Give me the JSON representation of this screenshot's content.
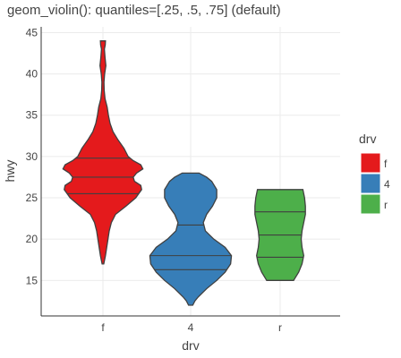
{
  "chart_data": {
    "type": "violin",
    "title": "geom_violin(): quantiles=[.25, .5, .75] (default)",
    "xlabel": "drv",
    "ylabel": "hwy",
    "ylim": [
      10.7,
      45.7
    ],
    "yticks": [
      15,
      20,
      25,
      30,
      35,
      40,
      45
    ],
    "grid": true,
    "categories": [
      "f",
      "4",
      "r"
    ],
    "legend": {
      "title": "drv",
      "position": "right",
      "entries": [
        {
          "label": "f",
          "color": "#E41A1C"
        },
        {
          "label": "4",
          "color": "#377EB8"
        },
        {
          "label": "r",
          "color": "#4DAF4A"
        }
      ]
    },
    "series": [
      {
        "category": "f",
        "color": "#E41A1C",
        "quantiles": [
          25.5,
          27.5,
          29.8
        ],
        "density": [
          [
            17,
            0.02
          ],
          [
            17.5,
            0.04
          ],
          [
            18,
            0.06
          ],
          [
            19,
            0.09
          ],
          [
            20,
            0.12
          ],
          [
            21,
            0.15
          ],
          [
            22,
            0.2
          ],
          [
            23,
            0.3
          ],
          [
            24,
            0.55
          ],
          [
            25,
            0.78
          ],
          [
            26,
            0.92
          ],
          [
            26.5,
            0.9
          ],
          [
            27,
            0.75
          ],
          [
            27.5,
            0.72
          ],
          [
            28,
            0.8
          ],
          [
            28.5,
            0.95
          ],
          [
            29,
            0.9
          ],
          [
            29.5,
            0.72
          ],
          [
            30,
            0.6
          ],
          [
            31,
            0.5
          ],
          [
            32,
            0.36
          ],
          [
            33,
            0.24
          ],
          [
            34,
            0.17
          ],
          [
            35,
            0.13
          ],
          [
            36,
            0.1
          ],
          [
            37,
            0.05
          ],
          [
            38,
            0.03
          ],
          [
            39,
            0.025
          ],
          [
            40,
            0.04
          ],
          [
            41,
            0.07
          ],
          [
            42,
            0.05
          ],
          [
            43,
            0.035
          ],
          [
            43.5,
            0.055
          ],
          [
            44,
            0.06
          ]
        ]
      },
      {
        "category": "4",
        "color": "#377EB8",
        "quantiles": [
          16.3,
          18,
          21.7
        ],
        "density": [
          [
            12,
            0.05
          ],
          [
            12.5,
            0.1
          ],
          [
            13,
            0.18
          ],
          [
            14,
            0.38
          ],
          [
            15,
            0.62
          ],
          [
            16,
            0.82
          ],
          [
            17,
            0.95
          ],
          [
            18,
            0.97
          ],
          [
            19,
            0.82
          ],
          [
            20,
            0.55
          ],
          [
            21,
            0.35
          ],
          [
            22,
            0.3
          ],
          [
            23,
            0.38
          ],
          [
            24,
            0.52
          ],
          [
            25,
            0.62
          ],
          [
            26,
            0.62
          ],
          [
            27,
            0.5
          ],
          [
            27.5,
            0.38
          ],
          [
            28,
            0.2
          ]
        ]
      },
      {
        "category": "r",
        "color": "#4DAF4A",
        "quantiles": [
          17.8,
          20.5,
          23.3
        ],
        "density": [
          [
            15,
            0.32
          ],
          [
            16,
            0.44
          ],
          [
            17,
            0.52
          ],
          [
            18,
            0.56
          ],
          [
            19,
            0.52
          ],
          [
            20,
            0.5
          ],
          [
            21,
            0.52
          ],
          [
            22,
            0.56
          ],
          [
            23,
            0.6
          ],
          [
            24,
            0.6
          ],
          [
            25,
            0.58
          ],
          [
            26,
            0.54
          ]
        ]
      }
    ]
  }
}
